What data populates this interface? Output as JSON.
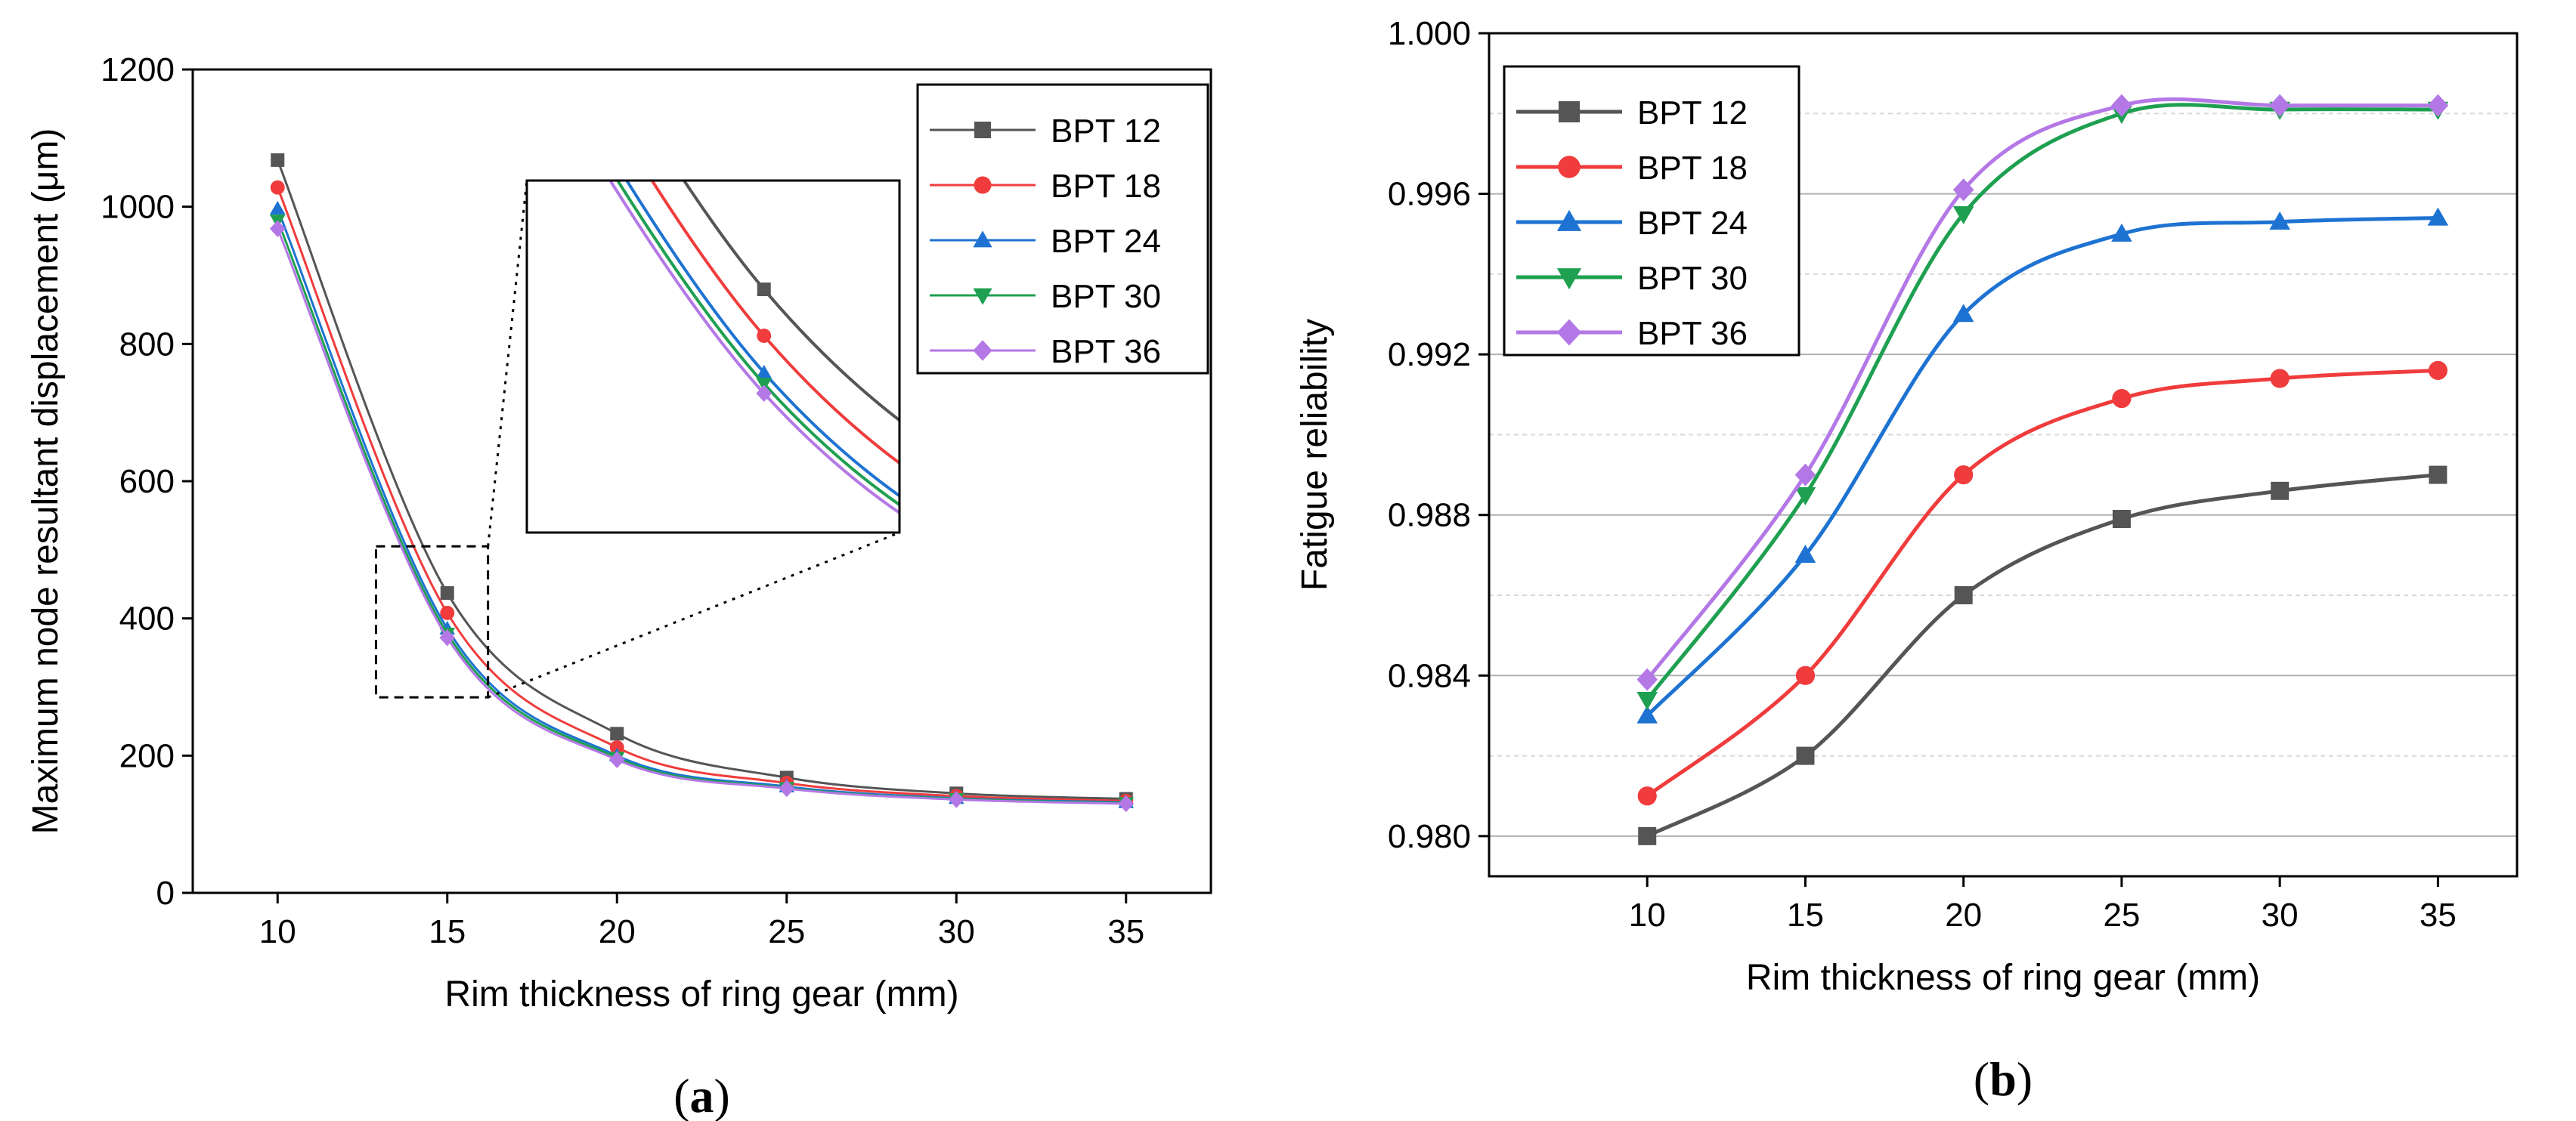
{
  "chart_data": [
    {
      "type": "line",
      "panel_label": "a",
      "x": [
        10,
        15,
        20,
        25,
        30,
        35
      ],
      "xlabel": "Rim thickness of ring gear (mm)",
      "ylabel": "Maximum node resultant displacement (μm)",
      "xticks": [
        "10",
        "15",
        "20",
        "25",
        "30",
        "35"
      ],
      "yticks": [
        "0",
        "200",
        "400",
        "600",
        "800",
        "1000",
        "1200"
      ],
      "xlim": [
        7.5,
        37.5
      ],
      "ylim": [
        0,
        1200
      ],
      "grid": false,
      "legend_position": "top-right",
      "inset": {
        "shown": true,
        "zoom_region_x": [
          12.9,
          16.2
        ],
        "zoom_region_y": [
          285,
          505
        ]
      },
      "series": [
        {
          "name": "BPT 12",
          "color": "#555555",
          "marker": "square",
          "values": [
            1068,
            437,
            232,
            168,
            145,
            137
          ]
        },
        {
          "name": "BPT 18",
          "color": "#f03c3c",
          "marker": "circle",
          "values": [
            1028,
            408,
            212,
            160,
            141,
            134
          ]
        },
        {
          "name": "BPT 24",
          "color": "#1e73d2",
          "marker": "triangle",
          "values": [
            997,
            385,
            200,
            155,
            138,
            132
          ]
        },
        {
          "name": "BPT 30",
          "color": "#1ea050",
          "marker": "triangle-down",
          "values": [
            980,
            378,
            197,
            153,
            137,
            131
          ]
        },
        {
          "name": "BPT 36",
          "color": "#b478e6",
          "marker": "diamond",
          "values": [
            968,
            372,
            194,
            152,
            136,
            130
          ]
        }
      ]
    },
    {
      "type": "line",
      "panel_label": "b",
      "x": [
        10,
        15,
        20,
        25,
        30,
        35
      ],
      "xlabel": "Rim thickness of ring gear (mm)",
      "ylabel": "Fatigue reliability",
      "xticks": [
        "10",
        "15",
        "20",
        "25",
        "30",
        "35"
      ],
      "yticks": [
        "0.980",
        "0.984",
        "0.988",
        "0.992",
        "0.996",
        "1.000"
      ],
      "xlim": [
        5,
        37.5
      ],
      "ylim": [
        0.979,
        1.0
      ],
      "grid": true,
      "legend_position": "top-left",
      "series": [
        {
          "name": "BPT 12",
          "color": "#555555",
          "marker": "square",
          "values": [
            0.98,
            0.982,
            0.986,
            0.9879,
            0.9886,
            0.989
          ]
        },
        {
          "name": "BPT 18",
          "color": "#f03c3c",
          "marker": "circle",
          "values": [
            0.981,
            0.984,
            0.989,
            0.9909,
            0.9914,
            0.9916
          ]
        },
        {
          "name": "BPT 24",
          "color": "#1e73d2",
          "marker": "triangle",
          "values": [
            0.983,
            0.987,
            0.993,
            0.995,
            0.9953,
            0.9954
          ]
        },
        {
          "name": "BPT 30",
          "color": "#1ea050",
          "marker": "triangle-down",
          "values": [
            0.9834,
            0.9885,
            0.9955,
            0.998,
            0.9981,
            0.9981
          ]
        },
        {
          "name": "BPT 36",
          "color": "#b478e6",
          "marker": "diamond",
          "values": [
            0.9839,
            0.989,
            0.9961,
            0.9982,
            0.9982,
            0.9982
          ]
        }
      ]
    }
  ]
}
